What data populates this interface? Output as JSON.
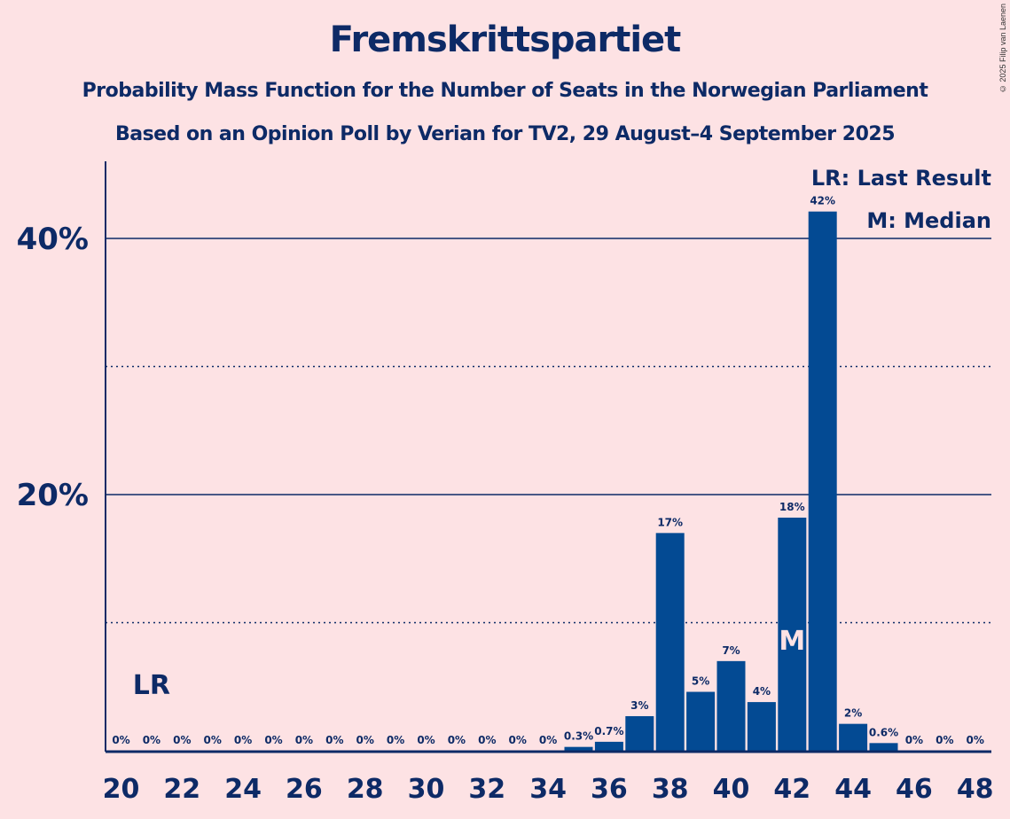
{
  "header": {
    "title": "Fremskrittspartiet",
    "subtitle1": "Probability Mass Function for the Number of Seats in the Norwegian Parliament",
    "subtitle2": "Based on an Opinion Poll by Verian for TV2, 29 August–4 September 2025",
    "copyright": "© 2025 Filip van Laenen"
  },
  "colors": {
    "background": "#fde2e4",
    "bar": "#034a93",
    "text": "#0d2a66"
  },
  "chart_data": {
    "type": "bar",
    "title": "Fremskrittspartiet",
    "xlabel": "",
    "ylabel": "",
    "categories": [
      20,
      21,
      22,
      23,
      24,
      25,
      26,
      27,
      28,
      29,
      30,
      31,
      32,
      33,
      34,
      35,
      36,
      37,
      38,
      39,
      40,
      41,
      42,
      43,
      44,
      45,
      46,
      47,
      48
    ],
    "values": [
      0,
      0,
      0,
      0,
      0,
      0,
      0,
      0,
      0,
      0,
      0,
      0,
      0,
      0,
      0,
      0.3,
      0.7,
      2.7,
      17.0,
      4.6,
      7.0,
      3.8,
      18.2,
      42.1,
      2.1,
      0.6,
      0,
      0,
      0
    ],
    "data_labels": [
      "0%",
      "0%",
      "0%",
      "0%",
      "0%",
      "0%",
      "0%",
      "0%",
      "0%",
      "0%",
      "0%",
      "0%",
      "0%",
      "0%",
      "0%",
      "0.3%",
      "0.7%",
      "3%",
      "17%",
      "5%",
      "7%",
      "4%",
      "18%",
      "42%",
      "2%",
      "0.6%",
      "0%",
      "0%",
      "0%"
    ],
    "x_tick_labels": [
      "20",
      "22",
      "24",
      "26",
      "28",
      "30",
      "32",
      "34",
      "36",
      "38",
      "40",
      "42",
      "44",
      "46",
      "48"
    ],
    "y_tick_labels": [
      "20%",
      "40%"
    ],
    "y_ticks": [
      20,
      40
    ],
    "y_minor_ticks": [
      10,
      30
    ],
    "ylim": [
      0,
      46
    ],
    "grid": true,
    "last_result": {
      "seat": 21,
      "label": "LR"
    },
    "median": {
      "seat": 42,
      "label": "M"
    },
    "legend": {
      "placement": "top-right",
      "entries": [
        "LR: Last Result",
        "M: Median"
      ]
    }
  }
}
